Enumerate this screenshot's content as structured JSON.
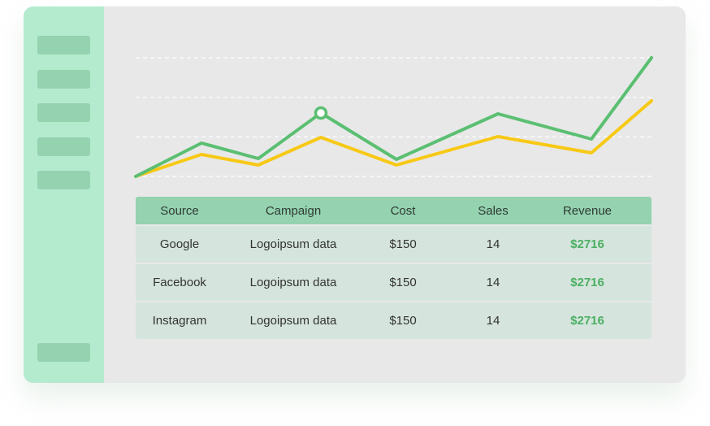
{
  "table": {
    "headers": [
      "Source",
      "Campaign",
      "Cost",
      "Sales",
      "Revenue"
    ],
    "rows": [
      [
        "Google",
        "Logoipsum data",
        "$150",
        "14",
        "$2716"
      ],
      [
        "Facebook",
        "Logoipsum data",
        "$150",
        "14",
        "$2716"
      ],
      [
        "Instagram",
        "Logoipsum data",
        "$150",
        "14",
        "$2716"
      ]
    ]
  },
  "chart_data": {
    "type": "line",
    "grid": true,
    "series": [
      {
        "color": "#5bbf72",
        "values": [
          0,
          41,
          22,
          78,
          21,
          77,
          46,
          146
        ],
        "marker_index": 3
      },
      {
        "color": "#f7c916",
        "values": [
          0,
          27,
          14,
          48,
          14,
          49,
          29,
          93
        ]
      }
    ],
    "ylim": [
      0,
      146
    ]
  },
  "colors": {
    "sidebar": "#b4ebcf",
    "accent": "#94d2b0",
    "revenue": "#4caf63"
  }
}
